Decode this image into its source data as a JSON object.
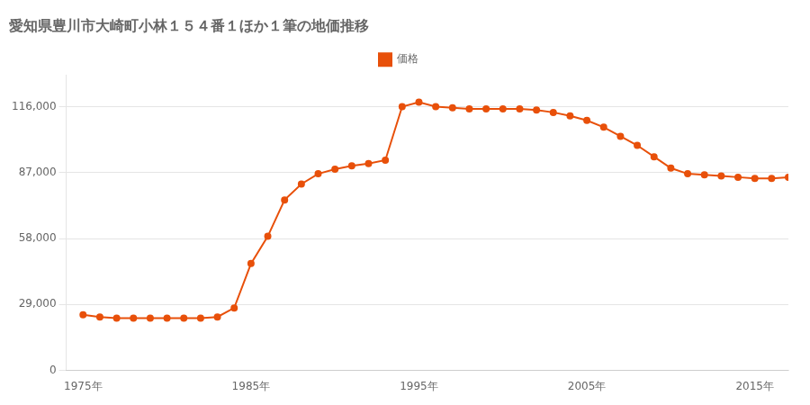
{
  "chart_data": {
    "type": "line",
    "title": "愛知県豊川市大崎町小林１５４番１ほか１筆の地価推移",
    "x": [
      1975,
      1976,
      1977,
      1978,
      1979,
      1980,
      1981,
      1982,
      1983,
      1984,
      1985,
      1986,
      1987,
      1988,
      1989,
      1990,
      1991,
      1992,
      1993,
      1994,
      1995,
      1996,
      1997,
      1998,
      1999,
      2000,
      2001,
      2002,
      2003,
      2004,
      2005,
      2006,
      2007,
      2008,
      2009,
      2010,
      2011,
      2012,
      2013,
      2014,
      2015,
      2016,
      2017
    ],
    "series": [
      {
        "name": "価格",
        "color": "#E8500A",
        "marker": "circle",
        "values": [
          24500,
          23500,
          23000,
          23000,
          23000,
          23000,
          23000,
          23000,
          23500,
          27500,
          47000,
          59000,
          75000,
          82000,
          86500,
          88500,
          90000,
          91000,
          92500,
          116000,
          118000,
          116000,
          115500,
          115000,
          115000,
          115000,
          115000,
          114500,
          113500,
          112000,
          110000,
          107000,
          103000,
          99000,
          94000,
          89000,
          86500,
          86000,
          85500,
          85000,
          84500,
          84500,
          85000
        ]
      }
    ],
    "xlim": [
      1974,
      2017
    ],
    "xticks": [
      {
        "value": 1975,
        "label": "1975年"
      },
      {
        "value": 1985,
        "label": "1985年"
      },
      {
        "value": 1995,
        "label": "1995年"
      },
      {
        "value": 2005,
        "label": "2005年"
      },
      {
        "value": 2015,
        "label": "2015年"
      }
    ],
    "ylim": [
      0,
      130000
    ],
    "yticks": [
      0,
      {
        "value": 29000,
        "label": "29,000"
      },
      {
        "value": 58000,
        "label": "58,000"
      },
      {
        "value": 87000,
        "label": "87,000"
      },
      {
        "value": 116000,
        "label": "116,000"
      }
    ],
    "grid": "y",
    "legend": "top"
  }
}
